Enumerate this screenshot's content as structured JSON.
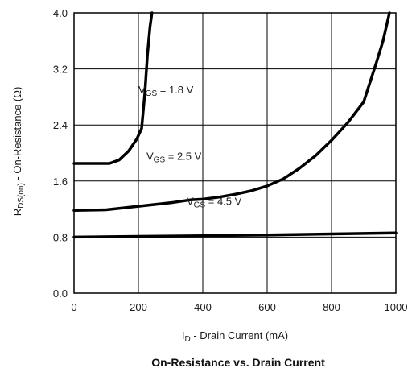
{
  "chart_data": {
    "type": "line",
    "title": "On-Resistance vs. Drain Current",
    "xlabel": {
      "main": "I",
      "sub": "D",
      "rest": " - Drain Current (mA)"
    },
    "ylabel": {
      "main": "R",
      "sub": "DS(on)",
      "rest": " - On-Resistance (Ω)"
    },
    "xlim": [
      0,
      1000
    ],
    "ylim": [
      0,
      4.0
    ],
    "xticks": [
      0,
      200,
      400,
      600,
      800,
      1000
    ],
    "xtick_labels": [
      "0",
      "200",
      "400",
      "600",
      "800",
      "1000"
    ],
    "yticks": [
      0,
      0.8,
      1.6,
      2.4,
      3.2,
      4.0
    ],
    "ytick_labels": [
      "0.0",
      "0.8",
      "1.6",
      "2.4",
      "3.2",
      "4.0"
    ],
    "grid": true,
    "series": [
      {
        "name": "VGS = 1.8 V",
        "label": {
          "main": "V",
          "sub": "GS",
          "rest": " = 1.8 V"
        },
        "x": [
          0,
          60,
          110,
          140,
          170,
          195,
          210,
          220,
          228,
          236,
          242
        ],
        "y": [
          1.85,
          1.85,
          1.85,
          1.9,
          2.03,
          2.2,
          2.35,
          2.85,
          3.4,
          3.8,
          4.0
        ]
      },
      {
        "name": "VGS = 2.5 V",
        "label": {
          "main": "V",
          "sub": "GS",
          "rest": " = 2.5 V"
        },
        "x": [
          0,
          100,
          200,
          300,
          360,
          400,
          450,
          500,
          550,
          600,
          650,
          700,
          750,
          800,
          850,
          900,
          940,
          960,
          970,
          980
        ],
        "y": [
          1.18,
          1.19,
          1.24,
          1.29,
          1.33,
          1.34,
          1.37,
          1.41,
          1.46,
          1.53,
          1.63,
          1.78,
          1.96,
          2.18,
          2.43,
          2.73,
          3.3,
          3.6,
          3.8,
          4.0
        ]
      },
      {
        "name": "VGS = 4.5 V",
        "label": {
          "main": "V",
          "sub": "GS",
          "rest": " = 4.5 V"
        },
        "x": [
          0,
          200,
          400,
          600,
          800,
          1000
        ],
        "y": [
          0.8,
          0.81,
          0.82,
          0.83,
          0.845,
          0.86
        ]
      }
    ]
  }
}
